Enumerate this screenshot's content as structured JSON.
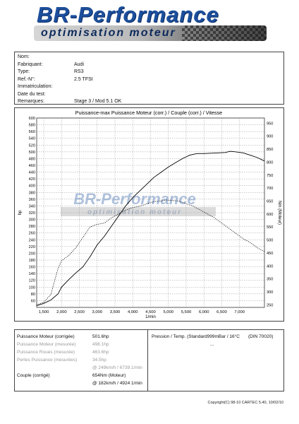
{
  "header": {
    "brand": "BR-Performance",
    "tagline": "optimisation moteur"
  },
  "vehicle": {
    "rows": [
      {
        "label": "Nom:",
        "value": ""
      },
      {
        "label": "Fabriquant:",
        "value": "Audi"
      },
      {
        "label": "Type:",
        "value": "RS3"
      },
      {
        "label": "Ref.-N°:",
        "value": "2.5 TFSI"
      },
      {
        "label": "Immatriculation:",
        "value": ""
      },
      {
        "label": "Date du test:",
        "value": ""
      },
      {
        "label": "Remarques:",
        "value": "Stage 3 / Mod 5.1 OK"
      }
    ]
  },
  "results": {
    "puissance_moteur_label": "Puissance Moteur (corrigée)",
    "puissance_moteur_value": "501.6hp",
    "puissance_mesuree_label": "Puissance Moteur (mesurée)",
    "puissance_mesuree_value": "498.1hp",
    "puissance_roues_label": "Puissance Roues (mesurée)",
    "puissance_roues_value": "463.6hp",
    "pertes_label": "Pertes Puissance (mesurées)",
    "pertes_value": "34.5hp",
    "power_at": "@ 249km/h / 6739.1/min",
    "couple_label": "Couple (corrigé)",
    "couple_value": "654Nm (Moteur)",
    "couple_at": "@ 182km/h / 4924 1/min",
    "pression_label": "Pression / Temp. (Standard999mBar / 16°C",
    "pression_norm": "(DIN 70020)",
    "dash": "..."
  },
  "footer": {
    "copyright": "Copyright(C) 98-10 CARTEC 5.40, 10/02/10"
  },
  "chart_data": {
    "type": "line",
    "title": "Puissance-max Puissance Moteur (corr.) / Couple (corr.) / Vitesse",
    "xlabel": "1/min",
    "ylabel": "hp",
    "y2label": "Nm (Moteur)",
    "xlim": [
      1300,
      7700
    ],
    "ylim": [
      40,
      600
    ],
    "y2lim": [
      240,
      970
    ],
    "x_ticks": [
      1500,
      2000,
      2500,
      3000,
      3500,
      4000,
      4500,
      5000,
      5500,
      6000,
      6500,
      7000
    ],
    "x_tick_labels": [
      "1,500",
      "2,000",
      "2,500",
      "3,000",
      "3,500",
      "4,000",
      "4,500",
      "5,000",
      "5,500",
      "6,000",
      "6,500",
      "7,000"
    ],
    "y_ticks": [
      60,
      80,
      100,
      120,
      140,
      160,
      180,
      200,
      220,
      240,
      260,
      280,
      300,
      320,
      340,
      360,
      380,
      400,
      420,
      440,
      460,
      480,
      500,
      520,
      540,
      560,
      580,
      600
    ],
    "y2_ticks": [
      250,
      300,
      350,
      400,
      450,
      500,
      550,
      600,
      650,
      700,
      750,
      800,
      850,
      900,
      950
    ],
    "grid": true,
    "series": [
      {
        "name": "Puissance Moteur (corr.)",
        "axis": "left",
        "style": "solid",
        "x": [
          1300,
          1500,
          1700,
          1900,
          2000,
          2200,
          2400,
          2600,
          2800,
          3000,
          3200,
          3400,
          3600,
          3800,
          4000,
          4200,
          4400,
          4600,
          4800,
          5000,
          5200,
          5400,
          5600,
          5800,
          6000,
          6200,
          6400,
          6600,
          6739,
          6900,
          7100,
          7300,
          7500,
          7700
        ],
        "values": [
          45,
          52,
          62,
          80,
          100,
          122,
          142,
          160,
          190,
          225,
          250,
          280,
          310,
          340,
          365,
          385,
          405,
          425,
          440,
          455,
          468,
          480,
          490,
          495,
          495,
          496,
          497,
          498,
          501.6,
          500,
          497,
          490,
          483,
          473
        ]
      },
      {
        "name": "Couple (corr.)",
        "axis": "right",
        "style": "dotted",
        "x": [
          1300,
          1500,
          1700,
          1800,
          1900,
          2000,
          2200,
          2400,
          2600,
          2800,
          3000,
          3200,
          3400,
          3600,
          3800,
          4000,
          4200,
          4400,
          4600,
          4800,
          4924,
          5100,
          5300,
          5500,
          5700,
          5900,
          6100,
          6300,
          6500,
          6700,
          6900,
          7100,
          7300,
          7500,
          7700
        ],
        "values": [
          250,
          260,
          290,
          340,
          390,
          420,
          440,
          470,
          510,
          550,
          560,
          565,
          585,
          600,
          615,
          625,
          630,
          640,
          648,
          650,
          654,
          652,
          650,
          640,
          630,
          615,
          600,
          585,
          565,
          545,
          525,
          505,
          490,
          470,
          455
        ]
      }
    ]
  }
}
